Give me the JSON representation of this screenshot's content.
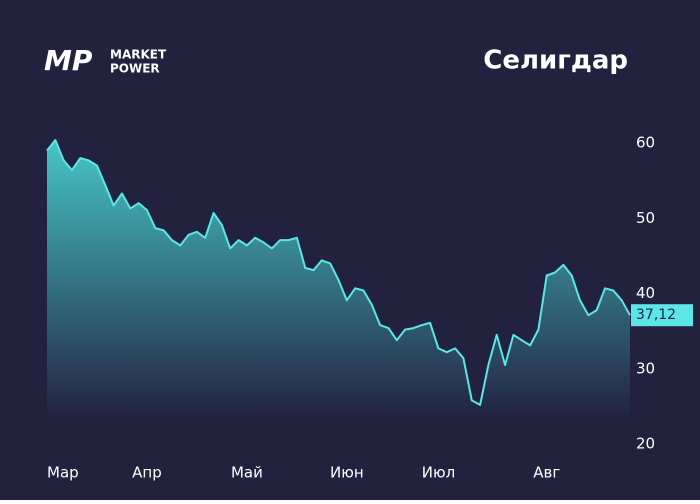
{
  "chart_data": {
    "type": "area",
    "title": "Селигдар",
    "logo": {
      "mark": "MP",
      "line1": "MARKET",
      "line2": "POWER"
    },
    "series": [
      {
        "name": "Селигдар",
        "color": "#5ce6e6",
        "values": [
          59.0,
          60.4,
          57.7,
          56.4,
          58,
          57.7,
          57,
          54.4,
          51.7,
          53.3,
          51.3,
          52,
          51.1,
          48.7,
          48.4,
          47.1,
          46.4,
          47.8,
          48.2,
          47.4,
          50.7,
          49.1,
          46,
          47.1,
          46.4,
          47.4,
          46.8,
          46,
          47.1,
          47.1,
          47.4,
          43.4,
          43.1,
          44.4,
          44,
          41.8,
          39.1,
          40.7,
          40.4,
          38.5,
          35.8,
          35.4,
          33.8,
          35.2,
          35.4,
          35.8,
          36.1,
          32.7,
          32.2,
          32.7,
          31.4,
          25.8,
          25.2,
          30.5,
          34.5,
          30.5,
          34.5,
          33.8,
          33.1,
          35.2,
          42.4,
          42.8,
          43.8,
          42.4,
          39.1,
          37.1,
          37.8,
          40.7,
          40.4,
          39.1,
          37.12
        ]
      }
    ],
    "last_price_label": "37,12",
    "xlim": [
      0,
      70
    ],
    "xticks": [
      {
        "value": 0,
        "label": "Мар"
      },
      {
        "value": 12,
        "label": "Апр"
      },
      {
        "value": 24,
        "label": "Май"
      },
      {
        "value": 36,
        "label": "Июн"
      },
      {
        "value": 47,
        "label": "Июл"
      },
      {
        "value": 60,
        "label": "Авг"
      }
    ],
    "ylim": [
      20,
      62
    ],
    "yticks": [
      20,
      30,
      40,
      50,
      60
    ],
    "background": "#22223f"
  }
}
